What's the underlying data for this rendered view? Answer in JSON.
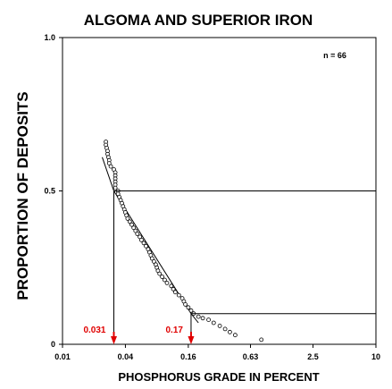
{
  "chart_data": {
    "type": "scatter",
    "title": "ALGOMA AND SUPERIOR IRON",
    "xlabel": "PHOSPHORUS GRADE IN PERCENT",
    "ylabel": "PROPORTION OF DEPOSITS",
    "x_scale": "log",
    "xlim": [
      0.01,
      10
    ],
    "ylim": [
      0,
      1.0
    ],
    "x_ticks": [
      {
        "value": 0.01,
        "label": "0.01"
      },
      {
        "value": 0.04,
        "label": "0.04"
      },
      {
        "value": 0.16,
        "label": "0.16"
      },
      {
        "value": 0.63,
        "label": "0.63"
      },
      {
        "value": 2.5,
        "label": "2.5"
      },
      {
        "value": 10,
        "label": "10"
      }
    ],
    "y_ticks": [
      {
        "value": 0,
        "label": "0"
      },
      {
        "value": 0.5,
        "label": "0.5"
      },
      {
        "value": 1.0,
        "label": "1.0"
      }
    ],
    "annotation": "n = 66",
    "markers": [
      {
        "x": 0.031,
        "y": 0.5,
        "label": "0.031",
        "color": "#e00000"
      },
      {
        "x": 0.17,
        "y": 0.1,
        "label": "0.17",
        "color": "#e00000"
      }
    ],
    "fit_line": [
      [
        0.024,
        0.61
      ],
      [
        0.031,
        0.5
      ],
      [
        0.17,
        0.1
      ],
      [
        0.2,
        0.07
      ]
    ],
    "points": [
      [
        0.026,
        0.66
      ],
      [
        0.026,
        0.65
      ],
      [
        0.0265,
        0.64
      ],
      [
        0.027,
        0.63
      ],
      [
        0.027,
        0.62
      ],
      [
        0.0275,
        0.61
      ],
      [
        0.028,
        0.6
      ],
      [
        0.028,
        0.59
      ],
      [
        0.029,
        0.58
      ],
      [
        0.031,
        0.57
      ],
      [
        0.032,
        0.56
      ],
      [
        0.032,
        0.55
      ],
      [
        0.032,
        0.54
      ],
      [
        0.032,
        0.53
      ],
      [
        0.032,
        0.52
      ],
      [
        0.032,
        0.51
      ],
      [
        0.034,
        0.5
      ],
      [
        0.034,
        0.49
      ],
      [
        0.035,
        0.48
      ],
      [
        0.036,
        0.47
      ],
      [
        0.037,
        0.46
      ],
      [
        0.038,
        0.45
      ],
      [
        0.039,
        0.44
      ],
      [
        0.04,
        0.43
      ],
      [
        0.041,
        0.42
      ],
      [
        0.042,
        0.41
      ],
      [
        0.044,
        0.4
      ],
      [
        0.046,
        0.39
      ],
      [
        0.048,
        0.38
      ],
      [
        0.05,
        0.37
      ],
      [
        0.052,
        0.36
      ],
      [
        0.055,
        0.35
      ],
      [
        0.057,
        0.34
      ],
      [
        0.06,
        0.33
      ],
      [
        0.063,
        0.32
      ],
      [
        0.066,
        0.31
      ],
      [
        0.068,
        0.3
      ],
      [
        0.07,
        0.29
      ],
      [
        0.072,
        0.28
      ],
      [
        0.075,
        0.27
      ],
      [
        0.078,
        0.26
      ],
      [
        0.08,
        0.25
      ],
      [
        0.082,
        0.24
      ],
      [
        0.085,
        0.23
      ],
      [
        0.09,
        0.22
      ],
      [
        0.095,
        0.21
      ],
      [
        0.1,
        0.2
      ],
      [
        0.11,
        0.19
      ],
      [
        0.115,
        0.18
      ],
      [
        0.12,
        0.17
      ],
      [
        0.13,
        0.16
      ],
      [
        0.14,
        0.15
      ],
      [
        0.145,
        0.14
      ],
      [
        0.15,
        0.13
      ],
      [
        0.16,
        0.12
      ],
      [
        0.17,
        0.11
      ],
      [
        0.18,
        0.1
      ],
      [
        0.2,
        0.09
      ],
      [
        0.22,
        0.085
      ],
      [
        0.25,
        0.08
      ],
      [
        0.28,
        0.07
      ],
      [
        0.32,
        0.06
      ],
      [
        0.36,
        0.05
      ],
      [
        0.4,
        0.04
      ],
      [
        0.45,
        0.03
      ],
      [
        0.8,
        0.015
      ]
    ]
  }
}
